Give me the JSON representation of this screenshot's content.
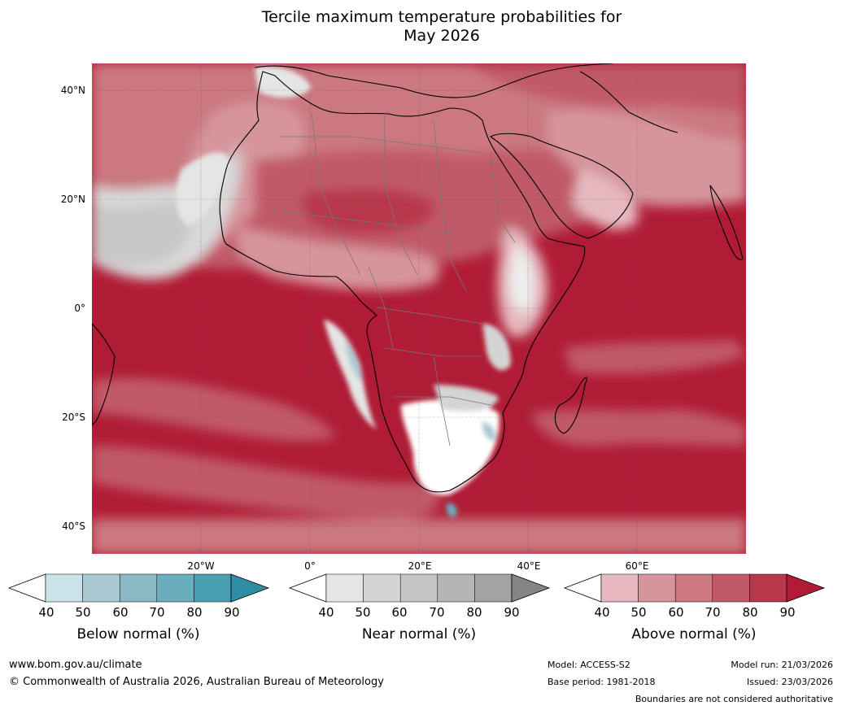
{
  "title": {
    "line1": "Tercile maximum temperature probabilities for",
    "line2": "May 2026"
  },
  "map": {
    "lat_labels": [
      "40°N",
      "20°N",
      "0°",
      "20°S",
      "40°S"
    ],
    "lon_labels": [
      "20°W",
      "0°",
      "20°E",
      "40°E",
      "60°E"
    ],
    "extent": {
      "lon": [
        -40,
        80
      ],
      "lat": [
        -45,
        45
      ]
    }
  },
  "legends": [
    {
      "title": "Below normal (%)",
      "ticks": [
        "40",
        "50",
        "60",
        "70",
        "80",
        "90"
      ],
      "colors": [
        "#ffffff",
        "#cbe2e8",
        "#a9cad2",
        "#8ab8c4",
        "#6aaebd",
        "#4aa0b3",
        "#2f8ea6"
      ]
    },
    {
      "title": "Near normal (%)",
      "ticks": [
        "40",
        "50",
        "60",
        "70",
        "80",
        "90"
      ],
      "colors": [
        "#ffffff",
        "#e5e5e5",
        "#d4d4d4",
        "#c5c5c5",
        "#b5b5b5",
        "#a3a3a3",
        "#858585"
      ]
    },
    {
      "title": "Above normal (%)",
      "ticks": [
        "40",
        "50",
        "60",
        "70",
        "80",
        "90"
      ],
      "colors": [
        "#ffffff",
        "#e5b9bf",
        "#d6949c",
        "#cb7880",
        "#c15a68",
        "#b8374b",
        "#b01c35"
      ]
    }
  ],
  "footer": {
    "url": "www.bom.gov.au/climate",
    "copyright": "© Commonwealth of Australia 2026, Australian Bureau of Meteorology",
    "model": "Model: ACCESS-S2",
    "base_period": "Base period: 1981-2018",
    "model_run": "Model run: 21/03/2026",
    "issued": "Issued: 23/03/2026",
    "disclaimer": "Boundaries are not considered authoritative"
  }
}
